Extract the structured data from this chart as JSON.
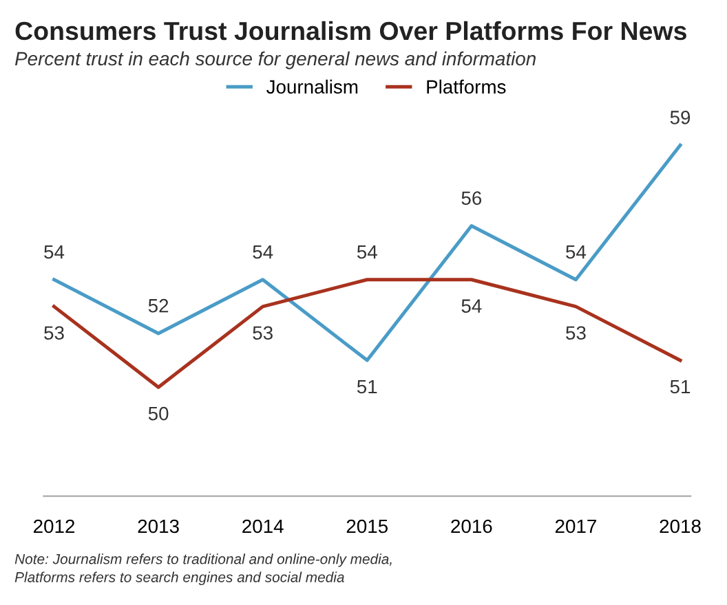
{
  "chart_data": {
    "type": "line",
    "title": "Consumers Trust Journalism Over Platforms For News",
    "subtitle": "Percent trust in each source for general news and information",
    "categories": [
      "2012",
      "2013",
      "2014",
      "2015",
      "2016",
      "2017",
      "2018"
    ],
    "series": [
      {
        "name": "Journalism",
        "color": "#4a9cc7",
        "values": [
          54,
          52,
          54,
          51,
          56,
          54,
          59
        ]
      },
      {
        "name": "Platforms",
        "color": "#a8321e",
        "values": [
          53,
          50,
          53,
          54,
          54,
          53,
          51
        ]
      }
    ],
    "data_labels": true,
    "legend": "top",
    "grid": false,
    "marker": "none",
    "line_style": "solid",
    "annotations": [
      "Note: Journalism refers to traditional and online-only media,",
      "Platforms refers to search engines and social media"
    ]
  }
}
